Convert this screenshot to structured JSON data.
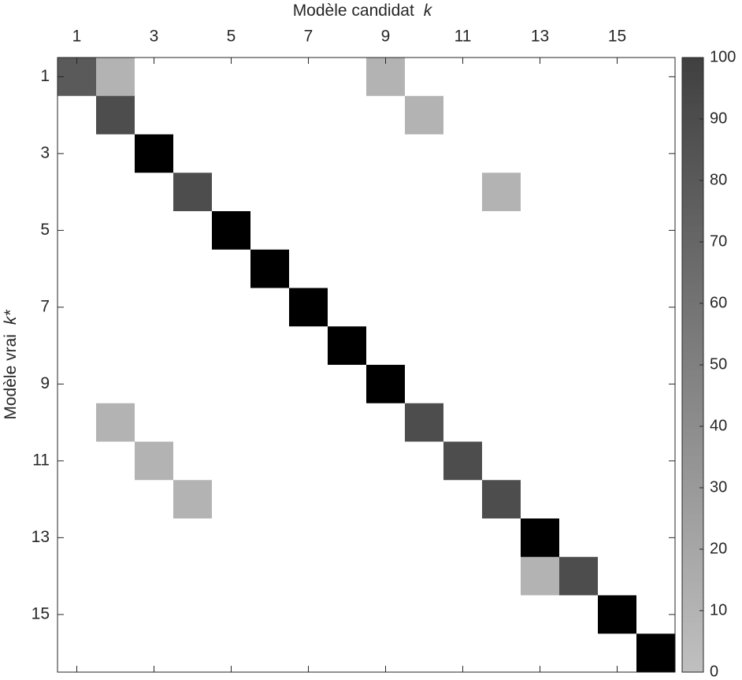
{
  "chart_data": {
    "type": "heatmap",
    "xlabel": "Modèle candidat",
    "xlabel_symbol": "k",
    "ylabel": "Modèle vrai",
    "ylabel_symbol": "k*",
    "xlim": [
      0.5,
      16.5
    ],
    "ylim": [
      0.5,
      16.5
    ],
    "xticks": [
      1,
      3,
      5,
      7,
      9,
      11,
      13,
      15
    ],
    "yticks": [
      1,
      3,
      5,
      7,
      9,
      11,
      13,
      15
    ],
    "z": [
      [
        80,
        10,
        0,
        0,
        0,
        0,
        0,
        0,
        10,
        0,
        0,
        0,
        0,
        0,
        0,
        0
      ],
      [
        0,
        90,
        0,
        0,
        0,
        0,
        0,
        0,
        0,
        10,
        0,
        0,
        0,
        0,
        0,
        0
      ],
      [
        0,
        0,
        100,
        0,
        0,
        0,
        0,
        0,
        0,
        0,
        0,
        0,
        0,
        0,
        0,
        0
      ],
      [
        0,
        0,
        0,
        90,
        0,
        0,
        0,
        0,
        0,
        0,
        0,
        10,
        0,
        0,
        0,
        0
      ],
      [
        0,
        0,
        0,
        0,
        100,
        0,
        0,
        0,
        0,
        0,
        0,
        0,
        0,
        0,
        0,
        0
      ],
      [
        0,
        0,
        0,
        0,
        0,
        100,
        0,
        0,
        0,
        0,
        0,
        0,
        0,
        0,
        0,
        0
      ],
      [
        0,
        0,
        0,
        0,
        0,
        0,
        100,
        0,
        0,
        0,
        0,
        0,
        0,
        0,
        0,
        0
      ],
      [
        0,
        0,
        0,
        0,
        0,
        0,
        0,
        100,
        0,
        0,
        0,
        0,
        0,
        0,
        0,
        0
      ],
      [
        0,
        0,
        0,
        0,
        0,
        0,
        0,
        0,
        100,
        0,
        0,
        0,
        0,
        0,
        0,
        0
      ],
      [
        0,
        10,
        0,
        0,
        0,
        0,
        0,
        0,
        0,
        90,
        0,
        0,
        0,
        0,
        0,
        0
      ],
      [
        0,
        0,
        10,
        0,
        0,
        0,
        0,
        0,
        0,
        0,
        90,
        0,
        0,
        0,
        0,
        0
      ],
      [
        0,
        0,
        0,
        10,
        0,
        0,
        0,
        0,
        0,
        0,
        0,
        90,
        0,
        0,
        0,
        0
      ],
      [
        0,
        0,
        0,
        0,
        0,
        0,
        0,
        0,
        0,
        0,
        0,
        0,
        100,
        0,
        0,
        0
      ],
      [
        0,
        0,
        0,
        0,
        0,
        0,
        0,
        0,
        0,
        0,
        0,
        0,
        10,
        90,
        0,
        0
      ],
      [
        0,
        0,
        0,
        0,
        0,
        0,
        0,
        0,
        0,
        0,
        0,
        0,
        0,
        0,
        100,
        0
      ],
      [
        0,
        0,
        0,
        0,
        0,
        0,
        0,
        0,
        0,
        0,
        0,
        0,
        0,
        0,
        0,
        100
      ]
    ],
    "colorbar_lim": [
      0,
      100
    ],
    "colorbar_ticks": [
      0,
      10,
      20,
      30,
      40,
      50,
      60,
      70,
      80,
      90,
      100
    ],
    "colormap": {
      "zero": "#ffffff",
      "low": "#c0c0c0",
      "high": "#404040",
      "max": "#000000"
    }
  }
}
